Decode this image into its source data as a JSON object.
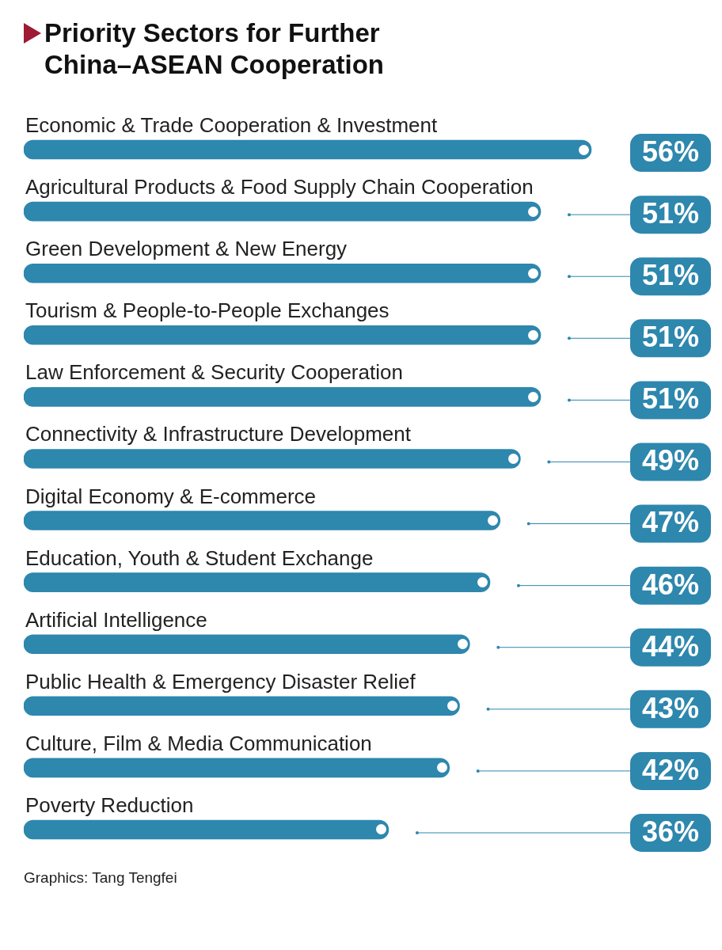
{
  "chart_data": {
    "type": "bar",
    "orientation": "horizontal",
    "title": "Priority Sectors for Further China–ASEAN Cooperation",
    "categories": [
      "Economic & Trade Cooperation & Investment",
      "Agricultural Products & Food Supply Chain Cooperation",
      "Green Development & New Energy",
      "Tourism & People-to-People Exchanges",
      "Law Enforcement & Security Cooperation",
      "Connectivity & Infrastructure Development",
      "Digital Economy & E-commerce",
      "Education, Youth & Student Exchange",
      "Artificial Intelligence",
      "Public Health & Emergency Disaster Relief",
      "Culture, Film & Media Communication",
      "Poverty Reduction"
    ],
    "values": [
      56,
      51,
      51,
      51,
      51,
      49,
      47,
      46,
      44,
      43,
      42,
      36
    ],
    "value_labels": [
      "56%",
      "51%",
      "51%",
      "51%",
      "51%",
      "49%",
      "47%",
      "46%",
      "44%",
      "43%",
      "42%",
      "36%"
    ],
    "color": "#2e87ad",
    "legend": false,
    "annotations": [
      "Graphics: Tang Tengfei"
    ]
  }
}
